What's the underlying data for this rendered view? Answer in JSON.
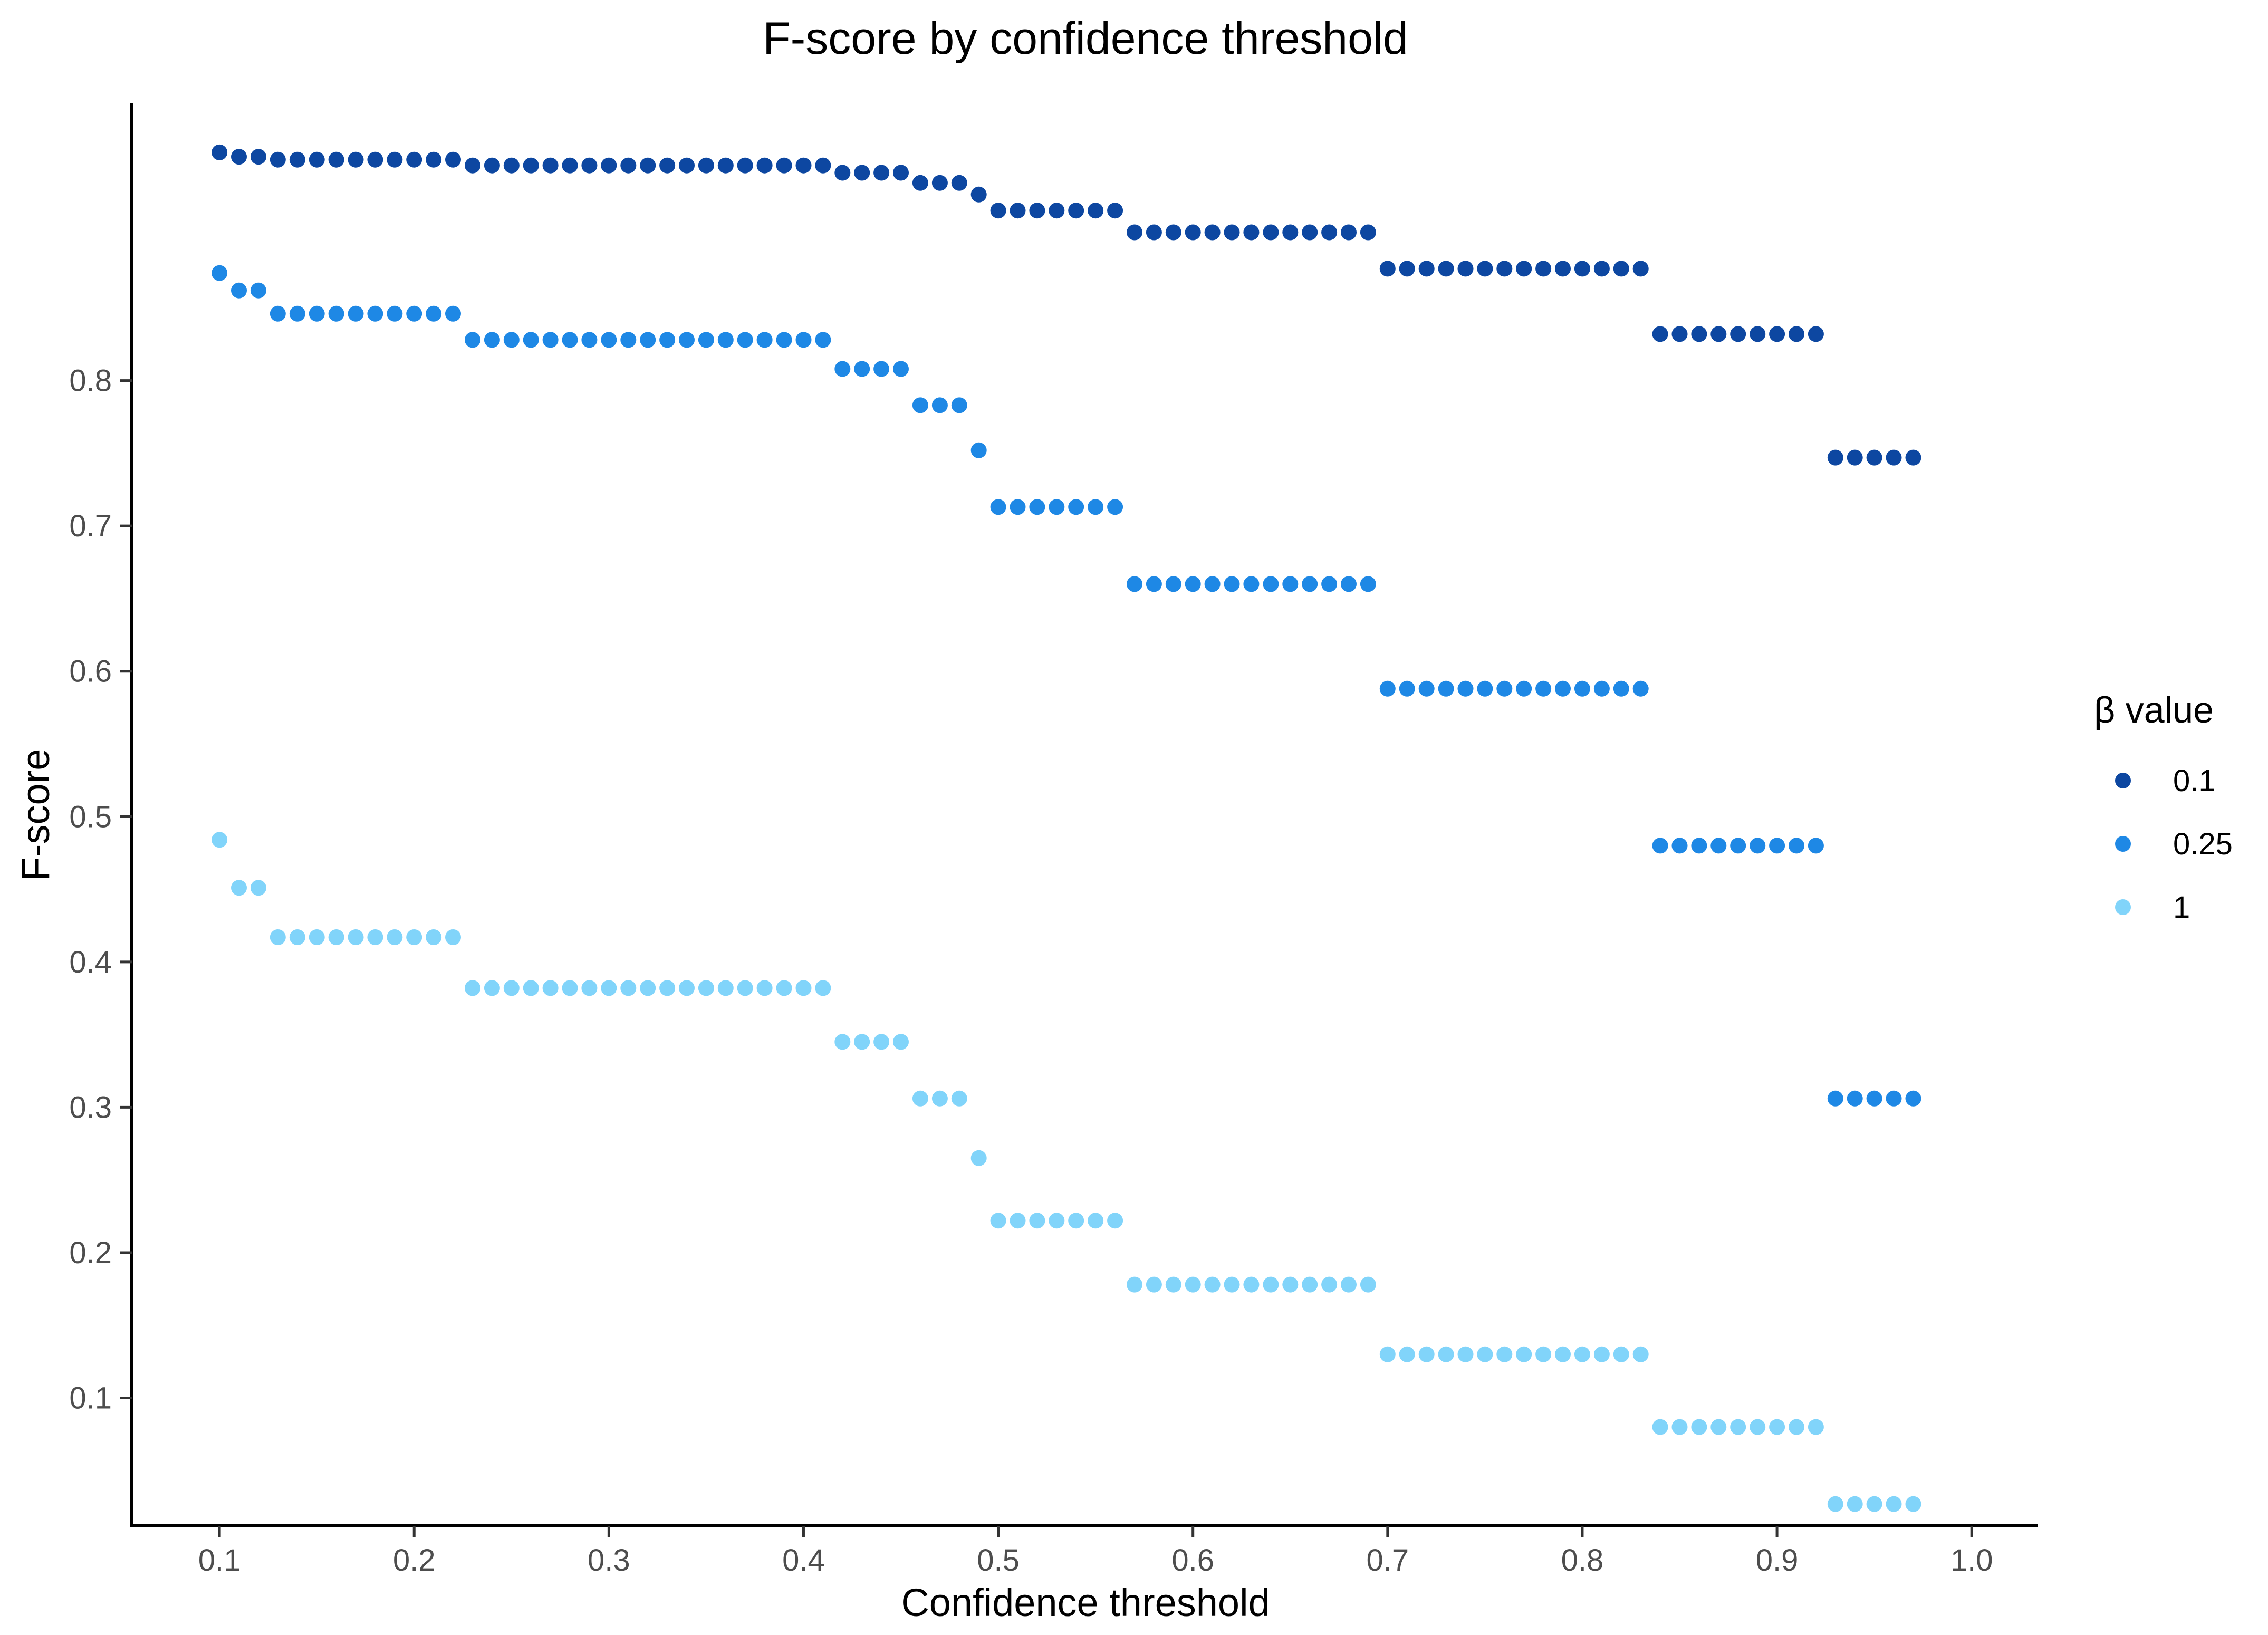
{
  "chart_data": {
    "type": "scatter",
    "title": "F-score by confidence threshold",
    "xlabel": "Confidence threshold",
    "ylabel": "F-score",
    "xlim": [
      0.055,
      1.033
    ],
    "ylim": [
      0.012,
      0.99
    ],
    "x_ticks": [
      "0.1",
      "0.2",
      "0.3",
      "0.4",
      "0.5",
      "0.6",
      "0.7",
      "0.8",
      "0.9",
      "1.0"
    ],
    "y_ticks": [
      "0.1",
      "0.2",
      "0.3",
      "0.4",
      "0.5",
      "0.6",
      "0.7",
      "0.8"
    ],
    "grid": false,
    "legend": {
      "title": "β value",
      "position": "right"
    },
    "x": [
      0.1,
      0.11,
      0.12,
      0.13,
      0.14,
      0.15,
      0.16,
      0.17,
      0.18,
      0.19,
      0.2,
      0.21,
      0.22,
      0.23,
      0.24,
      0.25,
      0.26,
      0.27,
      0.28,
      0.29,
      0.3,
      0.31,
      0.32,
      0.33,
      0.34,
      0.35,
      0.36,
      0.37,
      0.38,
      0.39,
      0.4,
      0.41,
      0.42,
      0.43,
      0.44,
      0.45,
      0.46,
      0.47,
      0.48,
      0.49,
      0.5,
      0.51,
      0.52,
      0.53,
      0.54,
      0.55,
      0.56,
      0.57,
      0.58,
      0.59,
      0.6,
      0.61,
      0.62,
      0.63,
      0.64,
      0.65,
      0.66,
      0.67,
      0.68,
      0.69,
      0.7,
      0.71,
      0.72,
      0.73,
      0.74,
      0.75,
      0.76,
      0.77,
      0.78,
      0.79,
      0.8,
      0.81,
      0.82,
      0.83,
      0.84,
      0.85,
      0.86,
      0.87,
      0.88,
      0.89,
      0.9,
      0.91,
      0.92,
      0.93,
      0.94,
      0.95,
      0.96,
      0.97
    ],
    "series": [
      {
        "name": "0.1",
        "color": "#0D47A1",
        "values": [
          0.957,
          0.954,
          0.954,
          0.952,
          0.952,
          0.952,
          0.952,
          0.952,
          0.952,
          0.952,
          0.952,
          0.952,
          0.952,
          0.948,
          0.948,
          0.948,
          0.948,
          0.948,
          0.948,
          0.948,
          0.948,
          0.948,
          0.948,
          0.948,
          0.948,
          0.948,
          0.948,
          0.948,
          0.948,
          0.948,
          0.948,
          0.948,
          0.943,
          0.943,
          0.943,
          0.943,
          0.936,
          0.936,
          0.936,
          0.928,
          0.917,
          0.917,
          0.917,
          0.917,
          0.917,
          0.917,
          0.917,
          0.902,
          0.902,
          0.902,
          0.902,
          0.902,
          0.902,
          0.902,
          0.902,
          0.902,
          0.902,
          0.902,
          0.902,
          0.902,
          0.877,
          0.877,
          0.877,
          0.877,
          0.877,
          0.877,
          0.877,
          0.877,
          0.877,
          0.877,
          0.877,
          0.877,
          0.877,
          0.877,
          0.832,
          0.832,
          0.832,
          0.832,
          0.832,
          0.832,
          0.832,
          0.832,
          0.832,
          0.747,
          0.747,
          0.747,
          0.747,
          0.747
        ]
      },
      {
        "name": "0.25",
        "color": "#1E88E5",
        "values": [
          0.874,
          0.862,
          0.862,
          0.846,
          0.846,
          0.846,
          0.846,
          0.846,
          0.846,
          0.846,
          0.846,
          0.846,
          0.846,
          0.828,
          0.828,
          0.828,
          0.828,
          0.828,
          0.828,
          0.828,
          0.828,
          0.828,
          0.828,
          0.828,
          0.828,
          0.828,
          0.828,
          0.828,
          0.828,
          0.828,
          0.828,
          0.828,
          0.808,
          0.808,
          0.808,
          0.808,
          0.783,
          0.783,
          0.783,
          0.752,
          0.713,
          0.713,
          0.713,
          0.713,
          0.713,
          0.713,
          0.713,
          0.66,
          0.66,
          0.66,
          0.66,
          0.66,
          0.66,
          0.66,
          0.66,
          0.66,
          0.66,
          0.66,
          0.66,
          0.66,
          0.588,
          0.588,
          0.588,
          0.588,
          0.588,
          0.588,
          0.588,
          0.588,
          0.588,
          0.588,
          0.588,
          0.588,
          0.588,
          0.588,
          0.48,
          0.48,
          0.48,
          0.48,
          0.48,
          0.48,
          0.48,
          0.48,
          0.48,
          0.306,
          0.306,
          0.306,
          0.306,
          0.306
        ]
      },
      {
        "name": "1",
        "color": "#81D4FA",
        "values": [
          0.484,
          0.451,
          0.451,
          0.417,
          0.417,
          0.417,
          0.417,
          0.417,
          0.417,
          0.417,
          0.417,
          0.417,
          0.417,
          0.382,
          0.382,
          0.382,
          0.382,
          0.382,
          0.382,
          0.382,
          0.382,
          0.382,
          0.382,
          0.382,
          0.382,
          0.382,
          0.382,
          0.382,
          0.382,
          0.382,
          0.382,
          0.382,
          0.345,
          0.345,
          0.345,
          0.345,
          0.306,
          0.306,
          0.306,
          0.265,
          0.222,
          0.222,
          0.222,
          0.222,
          0.222,
          0.222,
          0.222,
          0.178,
          0.178,
          0.178,
          0.178,
          0.178,
          0.178,
          0.178,
          0.178,
          0.178,
          0.178,
          0.178,
          0.178,
          0.178,
          0.13,
          0.13,
          0.13,
          0.13,
          0.13,
          0.13,
          0.13,
          0.13,
          0.13,
          0.13,
          0.13,
          0.13,
          0.13,
          0.13,
          0.08,
          0.08,
          0.08,
          0.08,
          0.08,
          0.08,
          0.08,
          0.08,
          0.08,
          0.027,
          0.027,
          0.027,
          0.027,
          0.027
        ]
      }
    ]
  }
}
